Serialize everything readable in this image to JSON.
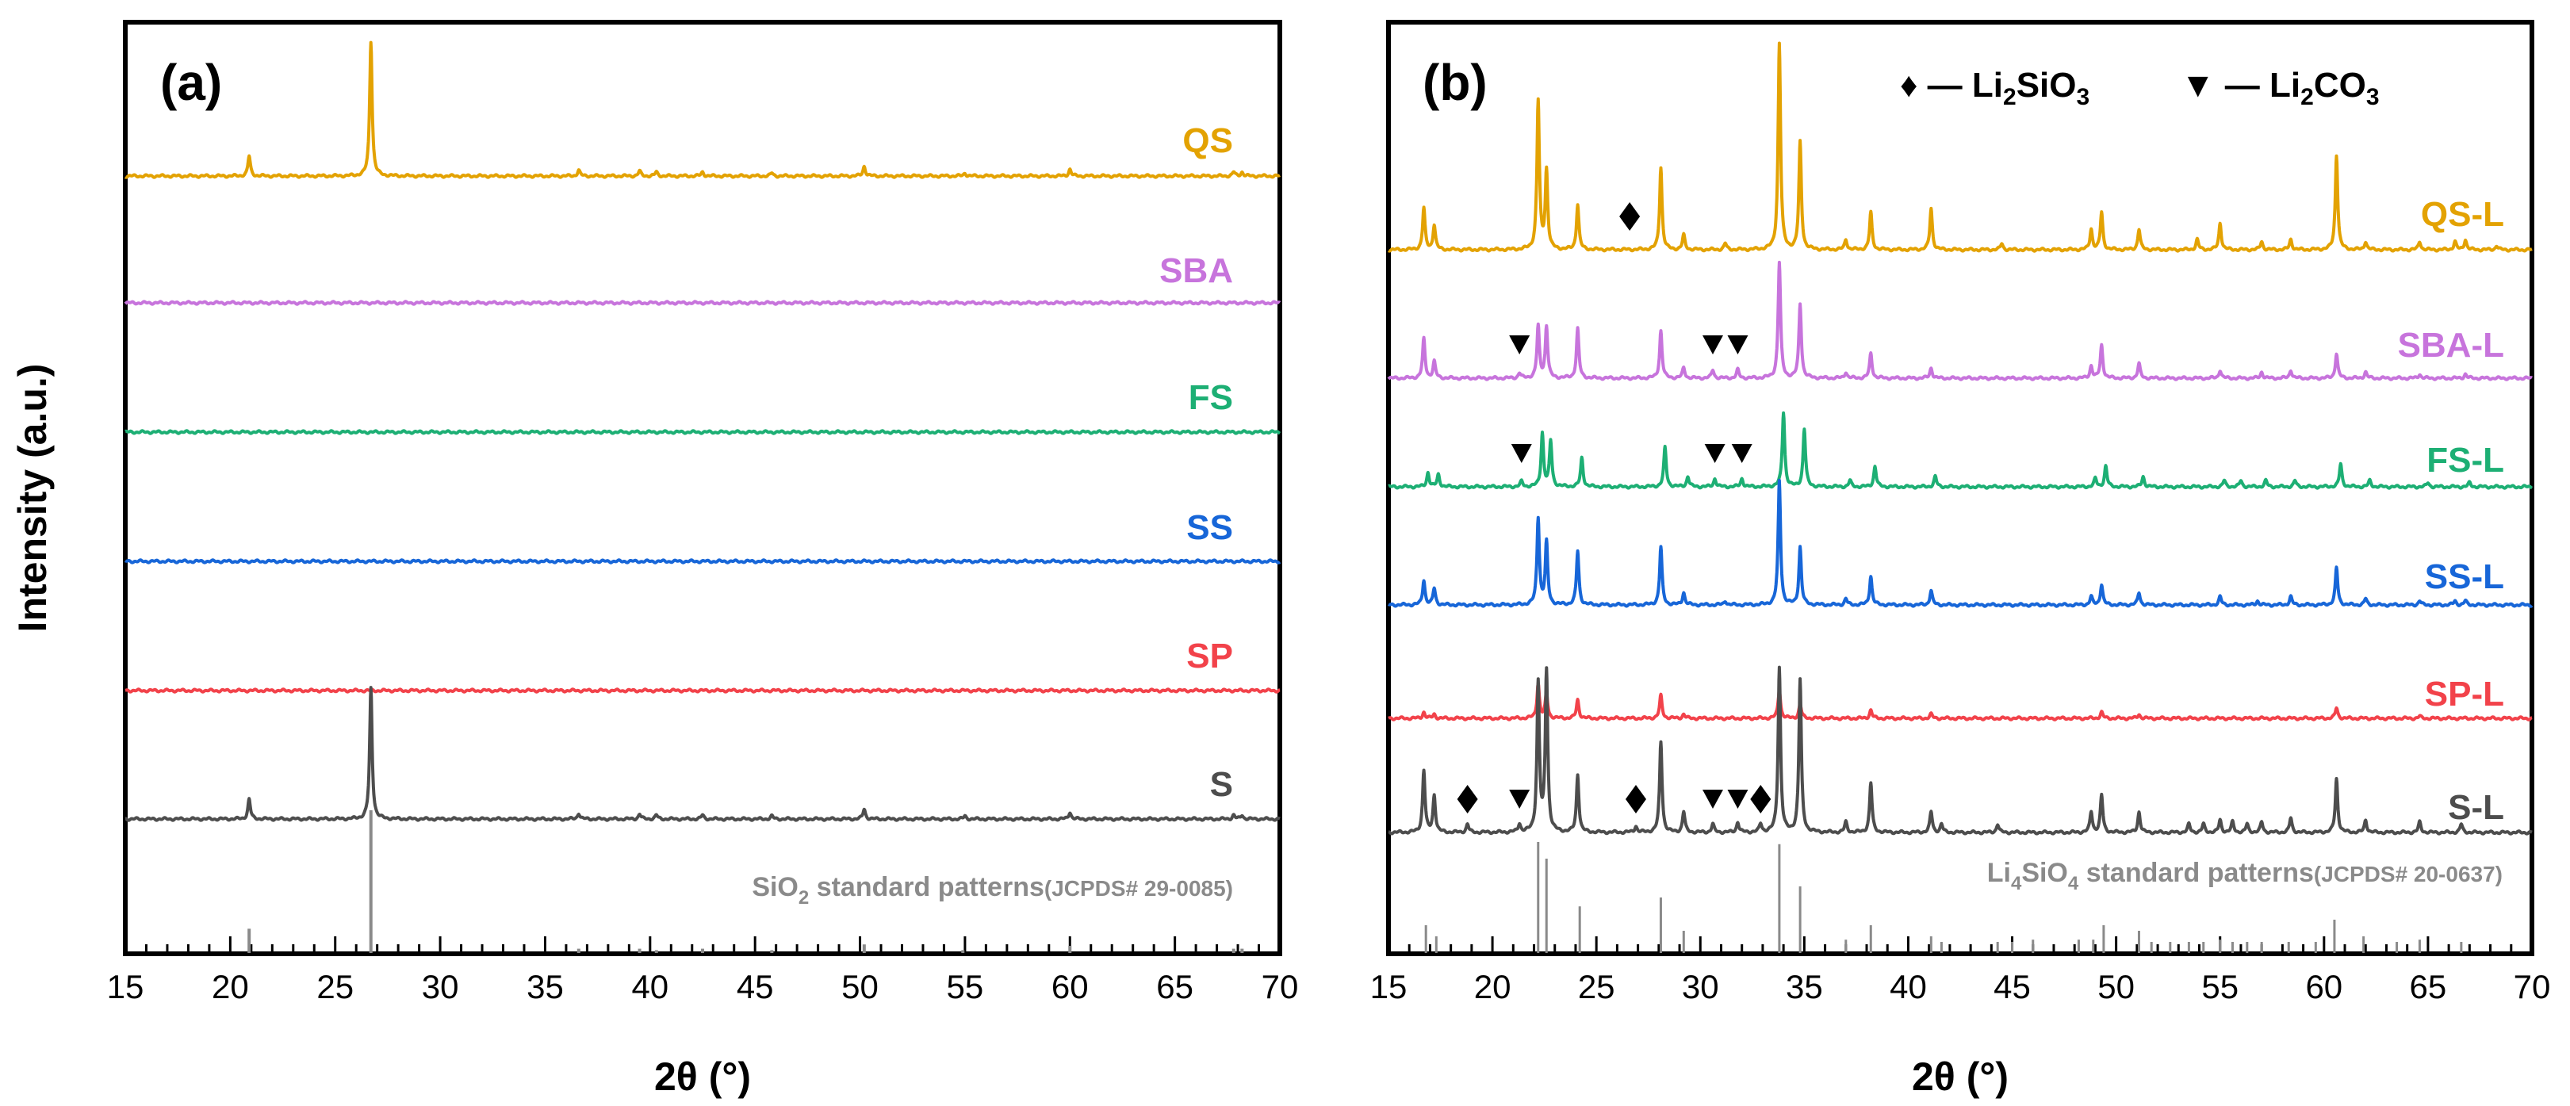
{
  "ylabel": "Intensity (a.u.)",
  "chart_data": [
    {
      "panel": "(a)",
      "type": "line",
      "xlabel": "2θ (°)",
      "xlim": [
        15,
        70
      ],
      "xticks": [
        15,
        20,
        25,
        30,
        35,
        40,
        45,
        50,
        55,
        60,
        65,
        70
      ],
      "reference": {
        "formula": "SiO",
        "sub": "2",
        "text": " standard patterns",
        "code": "(JCPDS# 29-0085)",
        "peaks": [
          [
            20.9,
            0.17
          ],
          [
            26.7,
            1.0
          ],
          [
            36.6,
            0.03
          ],
          [
            39.5,
            0.03
          ],
          [
            40.3,
            0.02
          ],
          [
            42.5,
            0.03
          ],
          [
            45.8,
            0.02
          ],
          [
            50.2,
            0.06
          ],
          [
            54.9,
            0.02
          ],
          [
            60.0,
            0.05
          ],
          [
            67.8,
            0.03
          ],
          [
            68.2,
            0.03
          ]
        ]
      },
      "series": [
        {
          "name": "QS",
          "color": "#E3A202",
          "amp": 1.0,
          "peaks": [
            [
              20.9,
              0.1
            ],
            [
              26.7,
              0.68
            ],
            [
              36.6,
              0.03
            ],
            [
              39.5,
              0.025
            ],
            [
              40.3,
              0.02
            ],
            [
              42.5,
              0.02
            ],
            [
              45.8,
              0.015
            ],
            [
              50.2,
              0.05
            ],
            [
              55.0,
              0.015
            ],
            [
              60.0,
              0.035
            ],
            [
              67.8,
              0.02
            ],
            [
              68.2,
              0.02
            ]
          ]
        },
        {
          "name": "SBA",
          "color": "#C774DC",
          "amp": 0.0,
          "peaks": []
        },
        {
          "name": "FS",
          "color": "#1DAF74",
          "amp": 0.0,
          "peaks": []
        },
        {
          "name": "SS",
          "color": "#1766D8",
          "amp": 0.0,
          "peaks": []
        },
        {
          "name": "SP",
          "color": "#F2424A",
          "amp": 0.0,
          "peaks": []
        },
        {
          "name": "S",
          "color": "#4D4D4D",
          "amp": 1.0,
          "peaks": [
            [
              20.9,
              0.1
            ],
            [
              26.7,
              0.66
            ],
            [
              36.6,
              0.03
            ],
            [
              39.5,
              0.025
            ],
            [
              40.3,
              0.02
            ],
            [
              42.5,
              0.02
            ],
            [
              45.8,
              0.015
            ],
            [
              50.2,
              0.05
            ],
            [
              55.0,
              0.015
            ],
            [
              60.0,
              0.035
            ],
            [
              67.8,
              0.02
            ],
            [
              68.2,
              0.02
            ]
          ]
        }
      ]
    },
    {
      "panel": "(b)",
      "type": "line",
      "xlabel": "2θ (°)",
      "xlim": [
        15,
        70
      ],
      "xticks": [
        15,
        20,
        25,
        30,
        35,
        40,
        45,
        50,
        55,
        60,
        65,
        70
      ],
      "legend": [
        {
          "symbol": "♦",
          "prefix": " — Li",
          "sub1": "2",
          "mid": "SiO",
          "sub2": "3"
        },
        {
          "symbol": "▼",
          "prefix": " — Li",
          "sub1": "2",
          "mid": "CO",
          "sub2": "3"
        }
      ],
      "reference": {
        "formula": "Li",
        "sub": "4",
        "formula2": "SiO",
        "sub2": "4",
        "text": " standard patterns",
        "code": "(JCPDS# 20-0637)",
        "peaks": [
          [
            16.8,
            0.25
          ],
          [
            17.3,
            0.15
          ],
          [
            22.2,
            1.0
          ],
          [
            22.6,
            0.85
          ],
          [
            24.2,
            0.42
          ],
          [
            28.1,
            0.5
          ],
          [
            29.2,
            0.2
          ],
          [
            33.8,
            0.98
          ],
          [
            34.8,
            0.6
          ],
          [
            37.0,
            0.12
          ],
          [
            38.2,
            0.25
          ],
          [
            41.1,
            0.15
          ],
          [
            41.6,
            0.1
          ],
          [
            44.3,
            0.1
          ],
          [
            45.0,
            0.1
          ],
          [
            46.0,
            0.12
          ],
          [
            48.2,
            0.12
          ],
          [
            48.9,
            0.12
          ],
          [
            49.4,
            0.25
          ],
          [
            51.1,
            0.2
          ],
          [
            51.7,
            0.1
          ],
          [
            52.6,
            0.1
          ],
          [
            53.5,
            0.1
          ],
          [
            54.2,
            0.1
          ],
          [
            55.0,
            0.12
          ],
          [
            55.6,
            0.1
          ],
          [
            56.3,
            0.1
          ],
          [
            57.0,
            0.1
          ],
          [
            58.3,
            0.1
          ],
          [
            59.6,
            0.1
          ],
          [
            60.5,
            0.3
          ],
          [
            61.9,
            0.15
          ],
          [
            63.5,
            0.1
          ],
          [
            64.6,
            0.12
          ],
          [
            66.6,
            0.1
          ]
        ]
      },
      "series": [
        {
          "name": "QS-L",
          "color": "#E3A202",
          "amp": 1.0,
          "peaks": [
            [
              16.7,
              0.2
            ],
            [
              17.2,
              0.12
            ],
            [
              22.2,
              0.72
            ],
            [
              22.6,
              0.38
            ],
            [
              24.1,
              0.22
            ],
            [
              28.1,
              0.4
            ],
            [
              29.2,
              0.07
            ],
            [
              31.2,
              0.03
            ],
            [
              33.8,
              1.0
            ],
            [
              34.8,
              0.52
            ],
            [
              37.0,
              0.05
            ],
            [
              38.2,
              0.18
            ],
            [
              41.1,
              0.2
            ],
            [
              44.5,
              0.03
            ],
            [
              48.8,
              0.1
            ],
            [
              49.3,
              0.18
            ],
            [
              51.1,
              0.1
            ],
            [
              53.9,
              0.05
            ],
            [
              55.0,
              0.13
            ],
            [
              57.0,
              0.04
            ],
            [
              58.4,
              0.05
            ],
            [
              60.6,
              0.46
            ],
            [
              62.0,
              0.04
            ],
            [
              64.6,
              0.04
            ],
            [
              66.3,
              0.04
            ],
            [
              66.8,
              0.05
            ],
            [
              68.3,
              0.02
            ]
          ]
        },
        {
          "name": "SBA-L",
          "color": "#C774DC",
          "amp": 1.0,
          "peaks": [
            [
              16.7,
              0.19
            ],
            [
              17.2,
              0.08
            ],
            [
              21.3,
              0.025
            ],
            [
              22.2,
              0.25
            ],
            [
              22.6,
              0.25
            ],
            [
              24.1,
              0.24
            ],
            [
              28.1,
              0.23
            ],
            [
              29.2,
              0.05
            ],
            [
              30.6,
              0.04
            ],
            [
              31.8,
              0.04
            ],
            [
              33.8,
              0.56
            ],
            [
              34.8,
              0.36
            ],
            [
              37.0,
              0.03
            ],
            [
              38.2,
              0.12
            ],
            [
              41.1,
              0.05
            ],
            [
              48.8,
              0.06
            ],
            [
              49.3,
              0.16
            ],
            [
              51.1,
              0.07
            ],
            [
              55.0,
              0.04
            ],
            [
              57.0,
              0.03
            ],
            [
              58.4,
              0.04
            ],
            [
              60.6,
              0.12
            ],
            [
              62.0,
              0.03
            ],
            [
              64.6,
              0.02
            ],
            [
              66.8,
              0.02
            ]
          ]
        },
        {
          "name": "FS-L",
          "color": "#1DAF74",
          "amp": 1.0,
          "peaks": [
            [
              16.9,
              0.07
            ],
            [
              17.4,
              0.06
            ],
            [
              21.4,
              0.025
            ],
            [
              22.4,
              0.26
            ],
            [
              22.8,
              0.22
            ],
            [
              24.3,
              0.14
            ],
            [
              28.3,
              0.19
            ],
            [
              29.4,
              0.05
            ],
            [
              30.7,
              0.04
            ],
            [
              32.0,
              0.04
            ],
            [
              34.0,
              0.36
            ],
            [
              35.0,
              0.28
            ],
            [
              37.2,
              0.03
            ],
            [
              38.4,
              0.1
            ],
            [
              41.3,
              0.05
            ],
            [
              49.0,
              0.04
            ],
            [
              49.5,
              0.1
            ],
            [
              51.3,
              0.05
            ],
            [
              55.2,
              0.03
            ],
            [
              56.0,
              0.03
            ],
            [
              57.2,
              0.03
            ],
            [
              58.6,
              0.03
            ],
            [
              60.8,
              0.11
            ],
            [
              62.2,
              0.03
            ],
            [
              65.0,
              0.02
            ],
            [
              67.0,
              0.02
            ]
          ]
        },
        {
          "name": "SS-L",
          "color": "#1766D8",
          "amp": 1.0,
          "peaks": [
            [
              16.7,
              0.12
            ],
            [
              17.2,
              0.08
            ],
            [
              22.2,
              0.42
            ],
            [
              22.6,
              0.3
            ],
            [
              24.1,
              0.26
            ],
            [
              28.1,
              0.28
            ],
            [
              29.2,
              0.06
            ],
            [
              31.2,
              0.02
            ],
            [
              33.8,
              0.6
            ],
            [
              34.8,
              0.28
            ],
            [
              37.0,
              0.03
            ],
            [
              38.2,
              0.14
            ],
            [
              41.1,
              0.07
            ],
            [
              48.8,
              0.04
            ],
            [
              49.3,
              0.1
            ],
            [
              51.1,
              0.06
            ],
            [
              55.0,
              0.04
            ],
            [
              56.8,
              0.02
            ],
            [
              58.4,
              0.04
            ],
            [
              60.6,
              0.18
            ],
            [
              62.0,
              0.03
            ],
            [
              64.6,
              0.02
            ],
            [
              66.3,
              0.02
            ],
            [
              66.8,
              0.02
            ]
          ]
        },
        {
          "name": "SP-L",
          "color": "#F2424A",
          "amp": 1.0,
          "peaks": [
            [
              16.7,
              0.03
            ],
            [
              17.2,
              0.02
            ],
            [
              22.2,
              0.17
            ],
            [
              22.6,
              0.12
            ],
            [
              24.1,
              0.09
            ],
            [
              28.1,
              0.11
            ],
            [
              29.2,
              0.02
            ],
            [
              33.8,
              0.14
            ],
            [
              34.8,
              0.07
            ],
            [
              38.2,
              0.04
            ],
            [
              41.1,
              0.02
            ],
            [
              49.3,
              0.03
            ],
            [
              51.1,
              0.02
            ],
            [
              60.6,
              0.05
            ],
            [
              64.6,
              0.01
            ]
          ]
        },
        {
          "name": "S-L",
          "color": "#4D4D4D",
          "amp": 1.0,
          "peaks": [
            [
              16.7,
              0.3
            ],
            [
              17.2,
              0.18
            ],
            [
              18.8,
              0.04
            ],
            [
              21.3,
              0.04
            ],
            [
              22.2,
              0.72
            ],
            [
              22.6,
              0.78
            ],
            [
              24.1,
              0.28
            ],
            [
              26.9,
              0.03
            ],
            [
              28.1,
              0.44
            ],
            [
              29.2,
              0.1
            ],
            [
              30.6,
              0.04
            ],
            [
              31.8,
              0.05
            ],
            [
              32.9,
              0.04
            ],
            [
              33.8,
              0.8
            ],
            [
              34.8,
              0.74
            ],
            [
              37.0,
              0.05
            ],
            [
              38.2,
              0.24
            ],
            [
              41.1,
              0.1
            ],
            [
              41.6,
              0.04
            ],
            [
              44.3,
              0.04
            ],
            [
              48.8,
              0.1
            ],
            [
              49.3,
              0.18
            ],
            [
              51.1,
              0.1
            ],
            [
              53.5,
              0.04
            ],
            [
              54.2,
              0.04
            ],
            [
              55.0,
              0.06
            ],
            [
              55.6,
              0.05
            ],
            [
              56.3,
              0.04
            ],
            [
              57.0,
              0.05
            ],
            [
              58.4,
              0.07
            ],
            [
              60.6,
              0.26
            ],
            [
              62.0,
              0.06
            ],
            [
              64.6,
              0.05
            ],
            [
              66.6,
              0.04
            ]
          ]
        }
      ],
      "markers": [
        {
          "series": "QS-L",
          "type": "diamond",
          "x": [
            26.6
          ]
        },
        {
          "series": "SBA-L",
          "type": "triangle",
          "x": [
            21.3,
            30.6,
            31.8
          ]
        },
        {
          "series": "FS-L",
          "type": "triangle",
          "x": [
            21.4,
            30.7,
            32.0
          ]
        },
        {
          "series": "S-L",
          "type": "diamond",
          "x": [
            18.8,
            26.9
          ]
        },
        {
          "series": "S-L",
          "type": "triangle",
          "x": [
            21.3,
            30.6,
            31.8
          ]
        },
        {
          "series": "S-L",
          "type": "diamond",
          "x": [
            32.9
          ]
        }
      ]
    }
  ]
}
